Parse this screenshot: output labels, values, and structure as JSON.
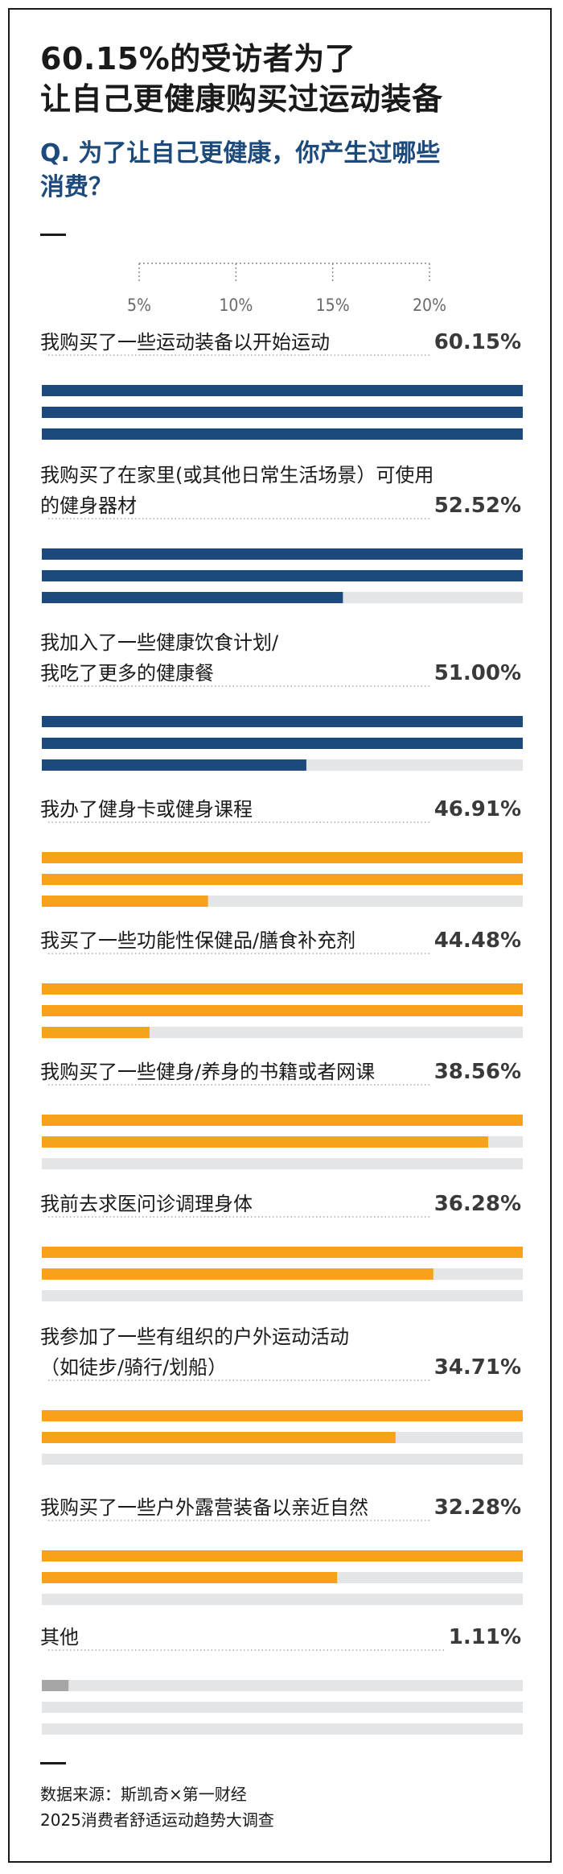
{
  "header": {
    "title_line1": "60.15%的受访者为了",
    "title_line2": "让自己更健康购买过运动装备",
    "question_line1": "Q. 为了让自己更健康，你产生过哪些",
    "question_line2": "消费？"
  },
  "footer": {
    "source_line1": "数据来源：斯凯奇×第一财经",
    "source_line2": "2025消费者舒适运动趋势大调查"
  },
  "colors": {
    "blue": "#1c4a7c",
    "orange": "#f7a21b",
    "gray": "#a6a6a6",
    "track": "#e3e5e6"
  },
  "chart_data": {
    "type": "bar",
    "unit": "%",
    "scale_ticks": [
      "5%",
      "10%",
      "15%",
      "20%"
    ],
    "scale_tick_values": [
      5,
      10,
      15,
      20
    ],
    "bar_max": 20,
    "categories": [
      {
        "label_lines": [
          "我购买了一些运动装备以开始运动"
        ],
        "value": 60.15,
        "display": "60.15%",
        "color": "blue"
      },
      {
        "label_lines": [
          "我购买了在家里(或其他日常生活场景）可使用",
          "的健身器材"
        ],
        "value": 52.52,
        "display": "52.52%",
        "color": "blue"
      },
      {
        "label_lines": [
          "我加入了一些健康饮食计划/",
          "我吃了更多的健康餐"
        ],
        "value": 51.0,
        "display": "51.00%",
        "color": "blue"
      },
      {
        "label_lines": [
          "我办了健身卡或健身课程"
        ],
        "value": 46.91,
        "display": "46.91%",
        "color": "orange"
      },
      {
        "label_lines": [
          "我买了一些功能性保健品/膳食补充剂"
        ],
        "value": 44.48,
        "display": "44.48%",
        "color": "orange"
      },
      {
        "label_lines": [
          "我购买了一些健身/养身的书籍或者网课"
        ],
        "value": 38.56,
        "display": "38.56%",
        "color": "orange"
      },
      {
        "label_lines": [
          "我前去求医问诊调理身体"
        ],
        "value": 36.28,
        "display": "36.28%",
        "color": "orange"
      },
      {
        "label_lines": [
          "我参加了一些有组织的户外运动活动",
          "（如徒步/骑行/划船）"
        ],
        "value": 34.71,
        "display": "34.71%",
        "color": "orange"
      },
      {
        "label_lines": [
          "我购买了一些户外露营装备以亲近自然"
        ],
        "value": 32.28,
        "display": "32.28%",
        "color": "orange"
      },
      {
        "label_lines": [
          "其他"
        ],
        "value": 1.11,
        "display": "1.11%",
        "color": "gray"
      }
    ]
  }
}
